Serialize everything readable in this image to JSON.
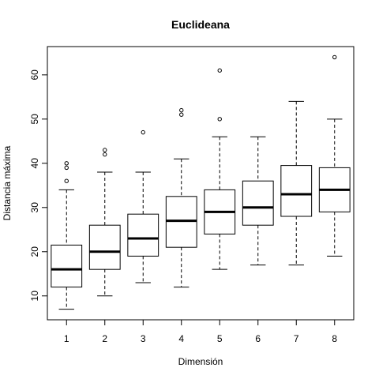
{
  "chart_data": {
    "type": "boxplot",
    "title": "Euclideana",
    "xlabel": "Dimensión",
    "ylabel": "Distancia máxima",
    "ylim": [
      4.6,
      66.4
    ],
    "xlim": [
      0.5,
      8.5
    ],
    "yticks": [
      10,
      20,
      30,
      40,
      50,
      60
    ],
    "categories": [
      "1",
      "2",
      "3",
      "4",
      "5",
      "6",
      "7",
      "8"
    ],
    "boxes": [
      {
        "category": "1",
        "whisker_low": 7,
        "q1": 12,
        "median": 16,
        "q3": 21.5,
        "whisker_high": 34,
        "outliers": [
          36,
          39,
          40
        ]
      },
      {
        "category": "2",
        "whisker_low": 10,
        "q1": 16,
        "median": 20,
        "q3": 26,
        "whisker_high": 38,
        "outliers": [
          42,
          43
        ]
      },
      {
        "category": "3",
        "whisker_low": 13,
        "q1": 19,
        "median": 23,
        "q3": 28.5,
        "whisker_high": 38,
        "outliers": [
          47
        ]
      },
      {
        "category": "4",
        "whisker_low": 12,
        "q1": 21,
        "median": 27,
        "q3": 32.5,
        "whisker_high": 41,
        "outliers": [
          51,
          52
        ]
      },
      {
        "category": "5",
        "whisker_low": 16,
        "q1": 24,
        "median": 29,
        "q3": 34,
        "whisker_high": 46,
        "outliers": [
          50,
          61
        ]
      },
      {
        "category": "6",
        "whisker_low": 17,
        "q1": 26,
        "median": 30,
        "q3": 36,
        "whisker_high": 46,
        "outliers": []
      },
      {
        "category": "7",
        "whisker_low": 17,
        "q1": 28,
        "median": 33,
        "q3": 39.5,
        "whisker_high": 54,
        "outliers": []
      },
      {
        "category": "8",
        "whisker_low": 19,
        "q1": 29,
        "median": 34,
        "q3": 39,
        "whisker_high": 50,
        "outliers": [
          64
        ]
      }
    ],
    "grid": false,
    "legend": "none",
    "colors": {
      "stroke": "#000000",
      "background": "#ffffff"
    }
  }
}
